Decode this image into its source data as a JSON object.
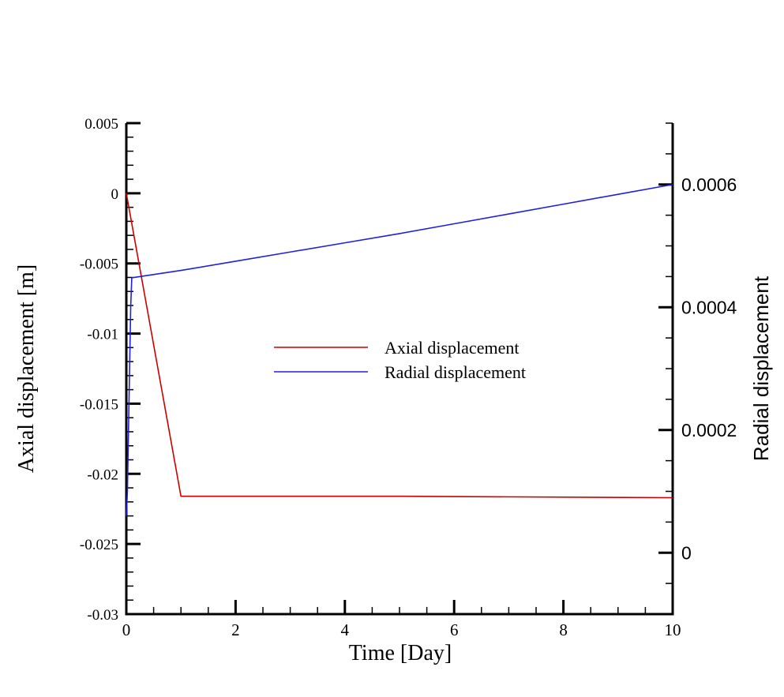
{
  "chart_data": {
    "type": "line",
    "xlabel": "Time [Day]",
    "ylabel_left": "Axial displacement [m]",
    "ylabel_right": "Radial displacement",
    "xlim": [
      0,
      10
    ],
    "ylim_left": [
      -0.03,
      0.005
    ],
    "ylim_right": [
      -0.0001,
      0.0007
    ],
    "xticks": [
      0,
      2,
      4,
      6,
      8,
      10
    ],
    "xtick_labels": [
      "0",
      "2",
      "4",
      "6",
      "8",
      "10"
    ],
    "yticks_left": [
      0.005,
      0,
      -0.005,
      -0.01,
      -0.015,
      -0.02,
      -0.025,
      -0.03
    ],
    "ytick_labels_left": [
      "0.005",
      "0",
      "-0.005",
      "-0.01",
      "-0.015",
      "-0.02",
      "-0.025",
      "-0.03"
    ],
    "yticks_right": [
      0.0006,
      0.0004,
      0.0002,
      0
    ],
    "ytick_labels_right": [
      "0.0006",
      "0.0004",
      "0.0002",
      "0"
    ],
    "grid": false,
    "legend_position": "center",
    "series": [
      {
        "name": "Axial displacement",
        "axis": "left",
        "color": "#cc0000",
        "x": [
          0,
          1,
          5,
          10
        ],
        "y": [
          0,
          -0.0216,
          -0.0216,
          -0.0217
        ]
      },
      {
        "name": "Radial displacement",
        "axis": "right",
        "color": "#2020dd",
        "x": [
          0,
          0.02,
          0.05,
          0.08,
          0.1,
          1,
          2,
          3,
          4,
          5,
          6,
          7,
          8,
          9,
          10
        ],
        "y": [
          6e-05,
          0.0001,
          0.00025,
          0.0004,
          0.000448,
          0.00046,
          0.000475,
          0.00049,
          0.000505,
          0.00052,
          0.000536,
          0.000552,
          0.000568,
          0.000584,
          0.0006
        ]
      }
    ]
  }
}
